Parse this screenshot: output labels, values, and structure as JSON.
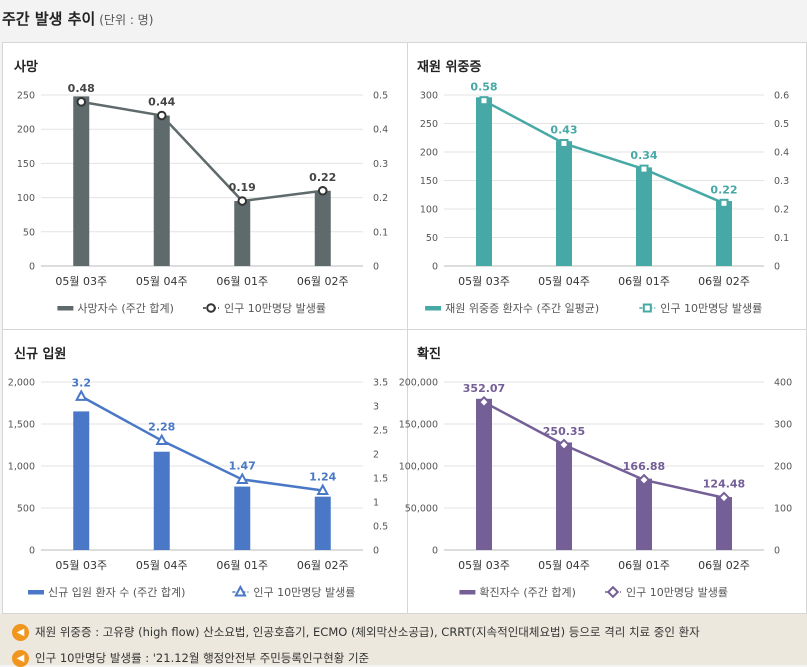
{
  "header": {
    "title": "주간 발생 추이",
    "unit": "(단위 : 명)"
  },
  "notes": [
    "재원 위중증 : 고유량 (high flow) 산소요법, 인공호흡기, ECMO (체외막산소공급), CRRT(지속적인대체요법) 등으로 격리 치료 중인 환자",
    "인구 10만명당 발생률 : '21.12월 행정안전부 주민등록인구현황 기준"
  ],
  "chart_data": [
    {
      "type": "bar",
      "title": "사망",
      "categories": [
        "05월 03주",
        "05월 04주",
        "06월 01주",
        "06월 02주"
      ],
      "series": [
        {
          "name": "사망자수 (주간 합계)",
          "type": "bar",
          "axis": "left",
          "values": [
            248,
            220,
            95,
            110
          ]
        },
        {
          "name": "인구 10만명당 발생률",
          "type": "line",
          "axis": "right",
          "values": [
            0.48,
            0.44,
            0.19,
            0.22
          ],
          "labels": [
            "0.48",
            "0.44",
            "0.19",
            "0.22"
          ]
        }
      ],
      "ylim": [
        0,
        250
      ],
      "yticks": [
        "0",
        "50",
        "100",
        "150",
        "200",
        "250"
      ],
      "y2lim": [
        0,
        0.5
      ],
      "y2ticks": [
        "0",
        "0.1",
        "0.2",
        "0.3",
        "0.4",
        "0.5"
      ],
      "bar_color": "#5f6a6c",
      "line_color": "#5f6a6c",
      "marker": "circle",
      "grid": true,
      "legend": "bottom"
    },
    {
      "type": "bar",
      "title": "재원 위중증",
      "categories": [
        "05월 03주",
        "05월 04주",
        "06월 01주",
        "06월 02주"
      ],
      "series": [
        {
          "name": "재원 위중증 환자수 (주간 일평균)",
          "type": "bar",
          "axis": "left",
          "values": [
            296,
            219,
            173,
            114
          ]
        },
        {
          "name": "인구 10만명당 발생률",
          "type": "line",
          "axis": "right",
          "values": [
            0.58,
            0.43,
            0.34,
            0.22
          ],
          "labels": [
            "0.58",
            "0.43",
            "0.34",
            "0.22"
          ]
        }
      ],
      "ylim": [
        0,
        300
      ],
      "yticks": [
        "0",
        "50",
        "100",
        "150",
        "200",
        "250",
        "300"
      ],
      "y2lim": [
        0,
        0.6
      ],
      "y2ticks": [
        "0",
        "0.1",
        "0.2",
        "0.3",
        "0.4",
        "0.5",
        "0.6"
      ],
      "bar_color": "#47a9a6",
      "line_color": "#47a9a6",
      "marker": "square",
      "grid": true,
      "legend": "bottom"
    },
    {
      "type": "bar",
      "title": "신규 입원",
      "categories": [
        "05월 03주",
        "05월 04주",
        "06월 01주",
        "06월 02주"
      ],
      "series": [
        {
          "name": "신규 입원 환자 수 (주간 합계)",
          "type": "bar",
          "axis": "left",
          "values": [
            1650,
            1170,
            755,
            635
          ]
        },
        {
          "name": "인구 10만명당 발생률",
          "type": "line",
          "axis": "right",
          "values": [
            3.2,
            2.28,
            1.47,
            1.24
          ],
          "labels": [
            "3.2",
            "2.28",
            "1.47",
            "1.24"
          ]
        }
      ],
      "ylim": [
        0,
        2000
      ],
      "yticks": [
        "0",
        "500",
        "1,000",
        "1,500",
        "2,000"
      ],
      "y2lim": [
        0,
        3.5
      ],
      "y2ticks": [
        "0",
        "0.5",
        "1",
        "1.5",
        "2",
        "2.5",
        "3",
        "3.5"
      ],
      "bar_color": "#4a78c6",
      "line_color": "#4a78c6",
      "marker": "triangle",
      "grid": true,
      "legend": "bottom"
    },
    {
      "type": "bar",
      "title": "확진",
      "categories": [
        "05월 03주",
        "05월 04주",
        "06월 01주",
        "06월 02주"
      ],
      "series": [
        {
          "name": "확진자수 (주간 합계)",
          "type": "bar",
          "axis": "left",
          "values": [
            180000,
            128000,
            85000,
            63000
          ]
        },
        {
          "name": "인구 10만명당 발생률",
          "type": "line",
          "axis": "right",
          "values": [
            352.07,
            250.35,
            166.88,
            124.48
          ],
          "labels": [
            "352.07",
            "250.35",
            "166.88",
            "124.48"
          ]
        }
      ],
      "ylim": [
        0,
        200000
      ],
      "yticks": [
        "0",
        "50,000",
        "100,000",
        "150,000",
        "200,000"
      ],
      "y2lim": [
        0,
        400
      ],
      "y2ticks": [
        "0",
        "100",
        "200",
        "300",
        "400"
      ],
      "bar_color": "#745f97",
      "line_color": "#745f97",
      "marker": "diamond",
      "grid": true,
      "legend": "bottom"
    }
  ]
}
